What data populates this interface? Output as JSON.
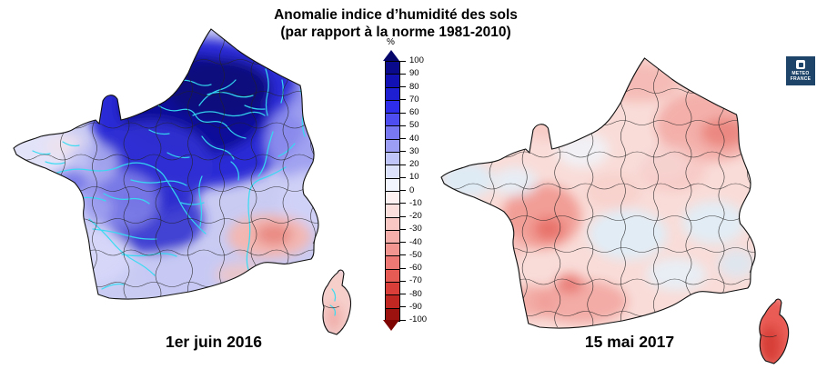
{
  "title": {
    "line1": "Anomalie indice d’humidité des sols",
    "line2": "(par rapport à la norme 1981-2010)"
  },
  "logo": {
    "line1": "METEO",
    "line2": "FRANCE",
    "background": "#1f4469"
  },
  "colorbar": {
    "unit": "%",
    "ticks": [
      100,
      90,
      80,
      70,
      60,
      50,
      40,
      30,
      20,
      10,
      0,
      -10,
      -20,
      -30,
      -40,
      -50,
      -60,
      -70,
      -80,
      -90,
      -100
    ],
    "segment_colors": [
      "#0a0a8c",
      "#1212b4",
      "#1e1ed2",
      "#2e2eea",
      "#4d4df0",
      "#7878f2",
      "#9c9ef6",
      "#bfc4f9",
      "#dde2fc",
      "#f2f4fe",
      "#fdf2f1",
      "#fbdfdd",
      "#f8c7c4",
      "#f5aeaa",
      "#f29490",
      "#ee7873",
      "#e75b55",
      "#d93f38",
      "#c02722",
      "#9c120e"
    ],
    "arrow_top_color": "#06066a",
    "arrow_bottom_color": "#7e0502"
  },
  "map_left": {
    "date_label": "1er juin 2016"
  },
  "map_right": {
    "date_label": "15 mai 2017"
  },
  "chart_data": {
    "type": "heatmap",
    "subtype": "choropleth-map-pair-of-france",
    "title": "Anomalie indice d’humidité des sols (par rapport à la norme 1981-2010)",
    "legend": {
      "unit": "%",
      "min": -100,
      "max": 100,
      "step": 10,
      "position": "center-between-maps",
      "palette": "dark blue (+100, très humide) through white (0) to dark red (-100, très sec)"
    },
    "maps": [
      {
        "date": "1er juin 2016",
        "reading": "Anomalies fortement positives (+60 à +100%, bleu très foncé) sur le nord et le centre du pays (Bassin parisien, Champagne, Bourgogne, Limousin); positives modérées (+20 à +50%) sur l'ouest, le sud-ouest et l'est; proches de 0 en Bretagne et sur la côte atlantique; légèrement négatives (0 à -30%, rose) en Provence et en Corse; réseau hydrographique tracé en cyan"
      },
      {
        "date": "15 mai 2017",
        "reading": "Anomalies légèrement négatives (0 à -30%, rose pâle) sur la majeure partie du pays; plus marquées (-30 à -50%) dans le nord-est (Lorraine/Vosges), l'ouest (Poitou) et le sud-ouest (région toulousaine); fortement négatives en Corse (-60 à -90%, rouge vif); quelques zones faiblement positives (bleu pâle) en Bretagne, au centre-est et en Rhône-Alpes"
      }
    ]
  }
}
